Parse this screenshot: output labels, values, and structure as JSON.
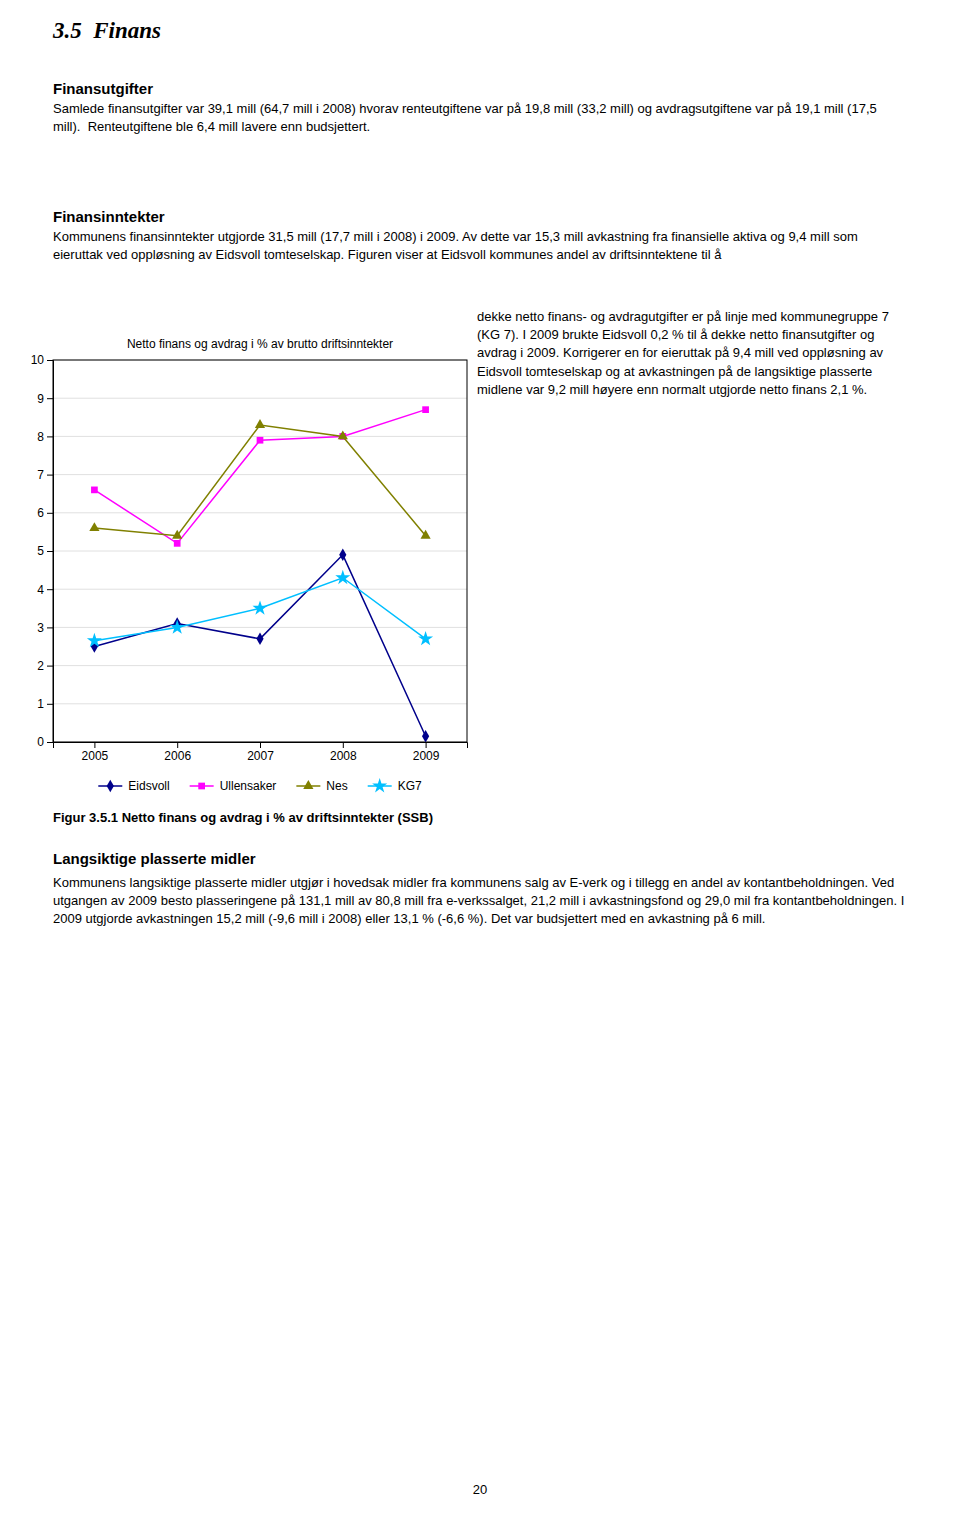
{
  "page_title": "3.5  Finans",
  "sections": [
    {
      "title": "Finansutgifter",
      "text": [
        "Samlede finansutgifter var 39,1 mill (64,7 mill i 2008) hvorav renteutgiftene var på 19,8 mill (33,2 mill) og avdragsutgiftene var på 19,1 mill (17,5 mill).  Renteutgiftene ble 6,4 mill lavere enn budsjettert."
      ]
    },
    {
      "title": "Finansinntekter",
      "text": [
        "Kommunens finansinntekter utgjorde 31,5 mill (17,7 mill i 2008) i 2009. Av dette var 15,3 mill avkastning fra finansielle aktiva og 9,4 mill som eieruttak ved oppløsning av Eidsvoll tomteselskap. Figuren viser at Eidsvoll kommunes andel av driftsinntektene til å",
        "dekke netto finans- og avdragutgifter er på linje med kommunegruppe 7 (KG 7). I 2009 brukte Eidsvoll 0,2 % til å dekke netto finansutgifter og avdrag i 2009. Korrigerer en for eieruttak på 9,4 mill ved oppløsning av Eidsvoll tomteselskap og at avkastningen på de langsiktige plasserte midlene var 9,2 mill høyere enn normalt utgjorde netto finans 2,1 %."
      ]
    },
    {
      "title": "Langsiktige plasserte midler",
      "text": [
        "Kommunens langsiktige plasserte midler utgjør i hovedsak midler fra kommunens salg av E-verk og i tillegg en andel av kontantbeholdningen. Ved utgangen av 2009 besto plasseringene på 131,1 mill av 80,8 mill fra e-verkssalget, 21,2 mill i avkastningsfond og 29,0 mil fra kontantbeholdningen. I 2009 utgjorde avkastningen 15,2 mill (-9,6 mill i 2008) eller 13,1 % (-6,6 %). Det var budsjettert med en avkastning på 6 mill."
      ]
    }
  ],
  "figure_caption": "Figur 3.5.1 Netto finans og avdrag i % av driftsinntekter (SSB)",
  "page_number": "20",
  "chart_data": {
    "type": "line",
    "title": "Netto finans og avdrag i % av brutto driftsinntekter",
    "x": [
      2005,
      2006,
      2007,
      2008,
      2009
    ],
    "xlim": [
      2004.5,
      2009.5
    ],
    "xticks": [
      2005,
      2006,
      2007,
      2008,
      2009
    ],
    "ylim": [
      0,
      10
    ],
    "yticks": [
      0,
      1,
      2,
      3,
      4,
      5,
      6,
      7,
      8,
      9,
      10
    ],
    "grid": true,
    "legend": "bottom",
    "series": [
      {
        "name": "Eidsvoll",
        "color": "#00008B",
        "marker": "diamond",
        "values": [
          2.5,
          3.1,
          2.7,
          4.9,
          0.15
        ]
      },
      {
        "name": "Ullensaker",
        "color": "#FF00FF",
        "marker": "square",
        "values": [
          6.6,
          5.2,
          7.9,
          8.0,
          8.7
        ]
      },
      {
        "name": "Nes",
        "color": "#808000",
        "marker": "triangle",
        "values": [
          5.6,
          5.4,
          8.3,
          8.0,
          5.4
        ]
      },
      {
        "name": "KG7",
        "color": "#00BFFF",
        "marker": "star",
        "values": [
          2.65,
          3.0,
          3.5,
          4.3,
          2.7
        ]
      }
    ]
  }
}
